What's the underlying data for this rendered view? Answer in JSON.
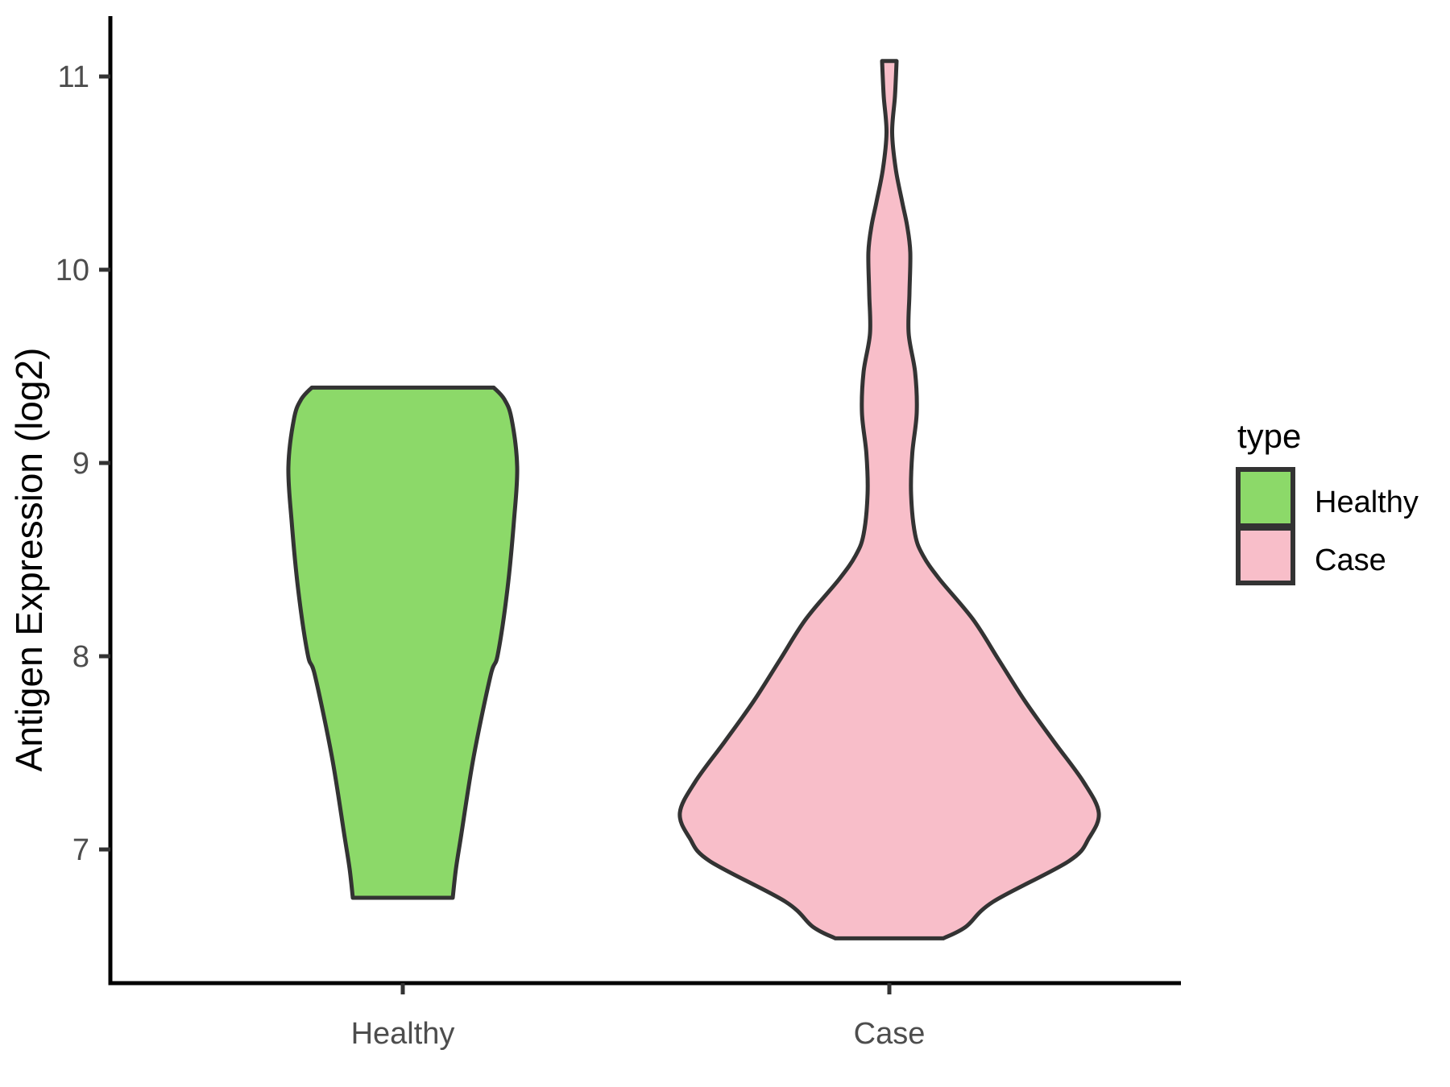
{
  "figure": {
    "y_axis_title": "Antigen Expression (log2)",
    "legend": {
      "title": "type",
      "entries": [
        {
          "label": "Healthy",
          "color": "#8CD969"
        },
        {
          "label": "Case",
          "color": "#F8BEC9"
        }
      ]
    }
  },
  "chart_data": {
    "type": "violin",
    "title": "",
    "xlabel": "",
    "ylabel": "Antigen Expression (log2)",
    "ylim": [
      6.31,
      11.3
    ],
    "y_ticks": [
      7,
      8,
      9,
      10,
      11
    ],
    "grid": "off",
    "legend_position": "right",
    "legend_title": "type",
    "categories": [
      "Healthy",
      "Case"
    ],
    "outline_color": "#333333",
    "axis_color": "#000000",
    "tick_text_color": "#4d4d4d",
    "series": [
      {
        "name": "Healthy",
        "fill": "#8CD969",
        "value_range": [
          6.75,
          9.39
        ],
        "widest_at": 8.98,
        "profile": [
          [
            9.39,
            113
          ],
          [
            9.33,
            126
          ],
          [
            9.23,
            135
          ],
          [
            8.98,
            142
          ],
          [
            8.7,
            138
          ],
          [
            8.35,
            130
          ],
          [
            8.01,
            118
          ],
          [
            7.9,
            109
          ],
          [
            7.48,
            88
          ],
          [
            7.06,
            72
          ],
          [
            6.9,
            66
          ],
          [
            6.75,
            62
          ]
        ]
      },
      {
        "name": "Case",
        "fill": "#F8BEC9",
        "value_range": [
          6.54,
          11.08
        ],
        "widest_at": 7.19,
        "profile": [
          [
            11.08,
            9
          ],
          [
            10.9,
            7
          ],
          [
            10.71,
            3.5
          ],
          [
            10.52,
            8
          ],
          [
            10.35,
            16
          ],
          [
            10.23,
            22
          ],
          [
            10.09,
            26
          ],
          [
            9.88,
            25
          ],
          [
            9.67,
            24
          ],
          [
            9.47,
            32
          ],
          [
            9.26,
            34
          ],
          [
            9.05,
            28.5
          ],
          [
            8.84,
            27
          ],
          [
            8.63,
            32
          ],
          [
            8.52,
            42
          ],
          [
            8.4,
            62
          ],
          [
            8.19,
            104
          ],
          [
            7.98,
            136
          ],
          [
            7.77,
            168
          ],
          [
            7.56,
            204
          ],
          [
            7.35,
            241
          ],
          [
            7.19,
            260
          ],
          [
            7.06,
            248
          ],
          [
            6.94,
            223
          ],
          [
            6.73,
            129
          ],
          [
            6.6,
            95
          ],
          [
            6.54,
            67
          ]
        ]
      }
    ]
  }
}
